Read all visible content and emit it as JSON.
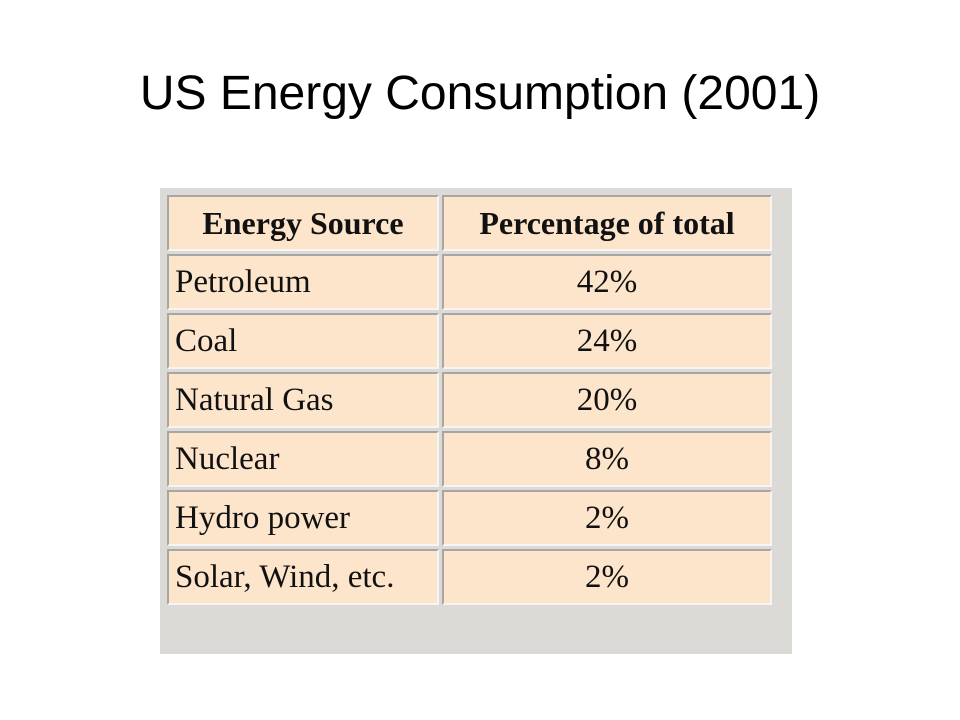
{
  "title": "US Energy Consumption (2001)",
  "table": {
    "headers": [
      "Energy Source",
      "Percentage of total"
    ],
    "rows": [
      {
        "source": "Petroleum",
        "percentage": "42%"
      },
      {
        "source": "Coal",
        "percentage": "24%"
      },
      {
        "source": "Natural Gas",
        "percentage": "20%"
      },
      {
        "source": "Nuclear",
        "percentage": "8%"
      },
      {
        "source": "Hydro power",
        "percentage": "2%"
      },
      {
        "source": "Solar, Wind, etc.",
        "percentage": "2%"
      }
    ],
    "colors": {
      "cell_background": "#fde5cc",
      "frame_background": "#dcdad6"
    }
  }
}
